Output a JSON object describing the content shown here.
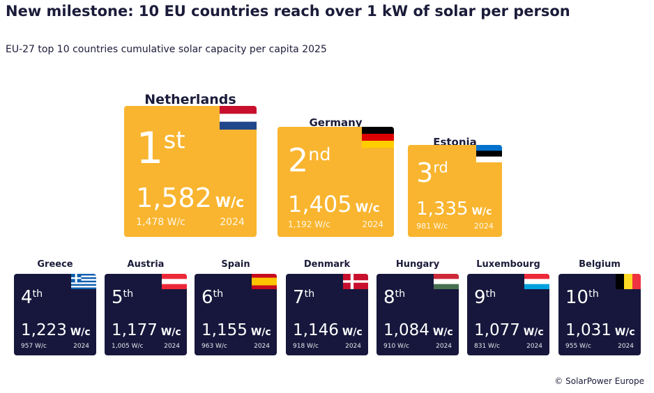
{
  "header": {
    "title": "New milestone: 10 EU countries reach over 1 kW of solar per person",
    "subtitle": "EU-27 top 10 countries cumulative solar capacity per capita 2025"
  },
  "countries": [
    {
      "name": "Netherlands",
      "rank": "1",
      "suffix": "st",
      "value": "1,582",
      "unit": "W/c",
      "previous": "1,478 W/c",
      "year": "2024"
    },
    {
      "name": "Germany",
      "rank": "2",
      "suffix": "nd",
      "value": "1,405",
      "unit": "W/c",
      "previous": "1,192 W/c",
      "year": "2024"
    },
    {
      "name": "Estonia",
      "rank": "3",
      "suffix": "rd",
      "value": "1,335",
      "unit": "W/c",
      "previous": "981 W/c",
      "year": "2024"
    },
    {
      "name": "Greece",
      "rank": "4",
      "suffix": "th",
      "value": "1,223",
      "unit": "W/c",
      "previous": "957 W/c",
      "year": "2024"
    },
    {
      "name": "Austria",
      "rank": "5",
      "suffix": "th",
      "value": "1,177",
      "unit": "W/c",
      "previous": "1,005 W/c",
      "year": "2024"
    },
    {
      "name": "Spain",
      "rank": "6",
      "suffix": "th",
      "value": "1,155",
      "unit": "W/c",
      "previous": "963 W/c",
      "year": "2024"
    },
    {
      "name": "Denmark",
      "rank": "7",
      "suffix": "th",
      "value": "1,146",
      "unit": "W/c",
      "previous": "918 W/c",
      "year": "2024"
    },
    {
      "name": "Hungary",
      "rank": "8",
      "suffix": "th",
      "value": "1,084",
      "unit": "W/c",
      "previous": "910 W/c",
      "year": "2024"
    },
    {
      "name": "Luxembourg",
      "rank": "9",
      "suffix": "th",
      "value": "1,077",
      "unit": "W/c",
      "previous": "831 W/c",
      "year": "2024"
    },
    {
      "name": "Belgium",
      "rank": "10",
      "suffix": "th",
      "value": "1,031",
      "unit": "W/c",
      "previous": "955 W/c",
      "year": "2024"
    }
  ],
  "footer": {
    "source": "© SolarPower Europe"
  }
}
